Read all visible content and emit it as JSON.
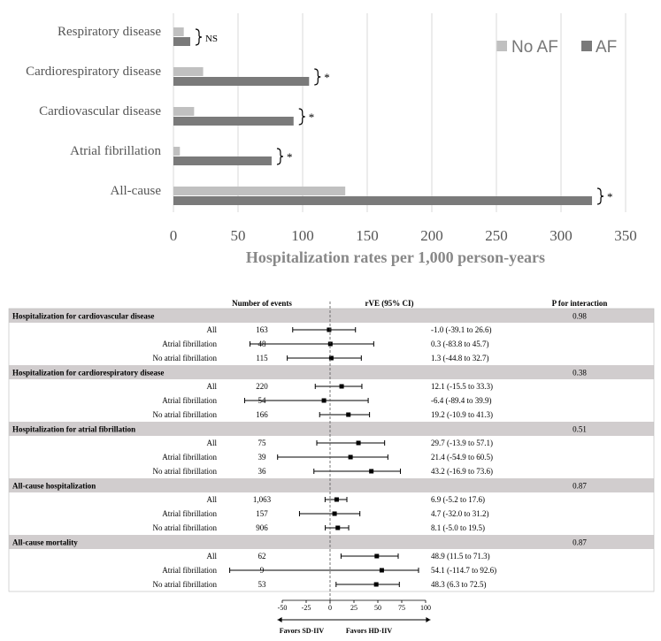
{
  "chart_data": [
    {
      "type": "bar",
      "orientation": "horizontal",
      "categories": [
        "Respiratory disease",
        "Cardiorespiratory disease",
        "Cardiovascular disease",
        "Atrial fibrillation",
        "All-cause"
      ],
      "series": [
        {
          "name": "No AF",
          "color": "#c0c0c0",
          "values": [
            8,
            23,
            16,
            5,
            133
          ]
        },
        {
          "name": "AF",
          "color": "#7a7a7a",
          "values": [
            13,
            105,
            93,
            76,
            324
          ]
        }
      ],
      "significance": [
        "NS",
        "*",
        "*",
        "*",
        "*"
      ],
      "xlabel": "Hospitalization rates per 1,000 person-years",
      "xlim": [
        0,
        350
      ],
      "xticks": [
        "0",
        "50",
        "100",
        "150",
        "200",
        "250",
        "300",
        "350"
      ],
      "legend_position": "top-right",
      "grid": true
    },
    {
      "type": "table",
      "subtype": "forest",
      "headers": {
        "events": "Number of events",
        "rve": "rVE (95% CI)",
        "p": "P for interaction"
      },
      "groups": [
        {
          "title": "Hospitalization for cardiovascular disease",
          "p": "0.98",
          "rows": [
            {
              "label": "All",
              "events": "163",
              "text": "-1.0 (-39.1 to 26.6)",
              "est": -1.0,
              "lo": -39.1,
              "hi": 26.6
            },
            {
              "label": "Atrial fibrillation",
              "events": "48",
              "text": "0.3 (-83.8 to 45.7)",
              "est": 0.3,
              "lo": -83.8,
              "hi": 45.7
            },
            {
              "label": "No atrial fibrillation",
              "events": "115",
              "text": "1.3 (-44.8 to 32.7)",
              "est": 1.3,
              "lo": -44.8,
              "hi": 32.7
            }
          ]
        },
        {
          "title": "Hospitalization for cardiorespiratory disease",
          "p": "0.38",
          "rows": [
            {
              "label": "All",
              "events": "220",
              "text": "12.1 (-15.5 to 33.3)",
              "est": 12.1,
              "lo": -15.5,
              "hi": 33.3
            },
            {
              "label": "Atrial fibrillation",
              "events": "54",
              "text": "-6.4 (-89.4 to 39.9)",
              "est": -6.4,
              "lo": -89.4,
              "hi": 39.9
            },
            {
              "label": "No atrial fibrillation",
              "events": "166",
              "text": "19.2 (-10.9 to 41.3)",
              "est": 19.2,
              "lo": -10.9,
              "hi": 41.3
            }
          ]
        },
        {
          "title": "Hospitalization for atrial fibrillation",
          "p": "0.51",
          "rows": [
            {
              "label": "All",
              "events": "75",
              "text": "29.7 (-13.9 to 57.1)",
              "est": 29.7,
              "lo": -13.9,
              "hi": 57.1
            },
            {
              "label": "Atrial fibrillation",
              "events": "39",
              "text": "21.4 (-54.9 to 60.5)",
              "est": 21.4,
              "lo": -54.9,
              "hi": 60.5
            },
            {
              "label": "No atrial fibrillation",
              "events": "36",
              "text": "43.2 (-16.9 to 73.6)",
              "est": 43.2,
              "lo": -16.9,
              "hi": 73.6
            }
          ]
        },
        {
          "title": "All-cause hospitalization",
          "p": "0.87",
          "rows": [
            {
              "label": "All",
              "events": "1,063",
              "text": "6.9 (-5.2 to 17.6)",
              "est": 6.9,
              "lo": -5.2,
              "hi": 17.6
            },
            {
              "label": "Atrial fibrillation",
              "events": "157",
              "text": "4.7 (-32.0 to 31.2)",
              "est": 4.7,
              "lo": -32.0,
              "hi": 31.2
            },
            {
              "label": "No atrial fibrillation",
              "events": "906",
              "text": "8.1 (-5.0 to 19.5)",
              "est": 8.1,
              "lo": -5.0,
              "hi": 19.5
            }
          ]
        },
        {
          "title": "All-cause mortality",
          "p": "0.87",
          "rows": [
            {
              "label": "All",
              "events": "62",
              "text": "48.9 (11.5 to 71.3)",
              "est": 48.9,
              "lo": 11.5,
              "hi": 71.3
            },
            {
              "label": "Atrial fibrillation",
              "events": "9",
              "text": "54.1 (-114.7 to 92.6)",
              "est": 54.1,
              "lo": -114.7,
              "hi": 92.6
            },
            {
              "label": "No atrial fibrillation",
              "events": "53",
              "text": "48.3 (6.3 to 72.5)",
              "est": 48.3,
              "lo": 6.3,
              "hi": 72.5
            }
          ]
        }
      ],
      "xlim": [
        -50,
        100
      ],
      "xticks": [
        "-50",
        "-25",
        "0",
        "25",
        "50",
        "75",
        "100"
      ],
      "favors_left": "Favors SD-IIV",
      "favors_right": "Favors HD-IIV",
      "header_band_color": "#d1cdce"
    }
  ]
}
